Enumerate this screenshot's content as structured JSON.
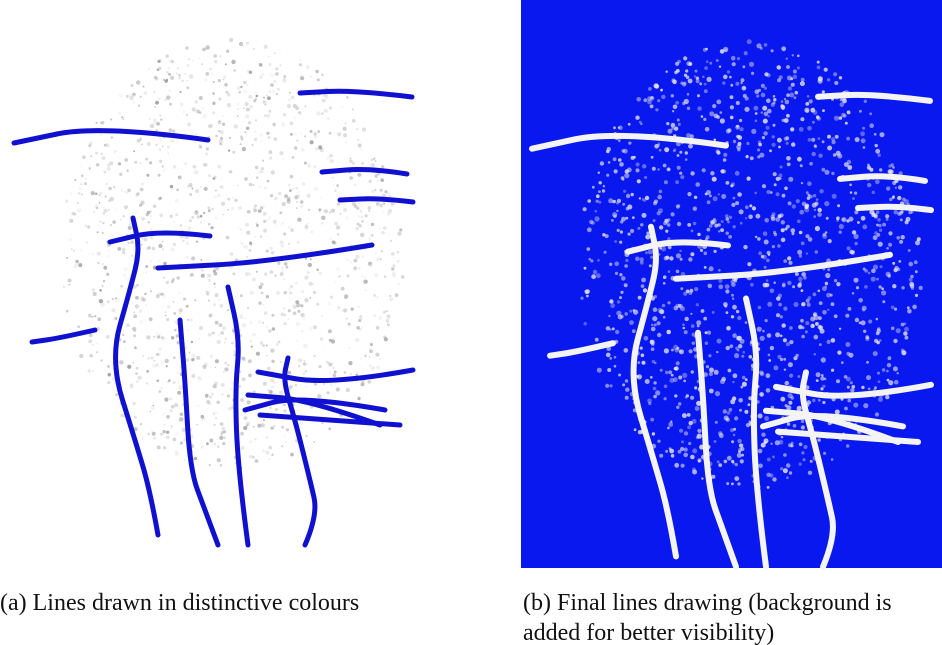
{
  "figure": {
    "panels": [
      {
        "caption": "(a) Lines drawn in distinctive colours"
      },
      {
        "caption": "(b) Final lines drawing (background is added for better visibility)"
      }
    ]
  }
}
